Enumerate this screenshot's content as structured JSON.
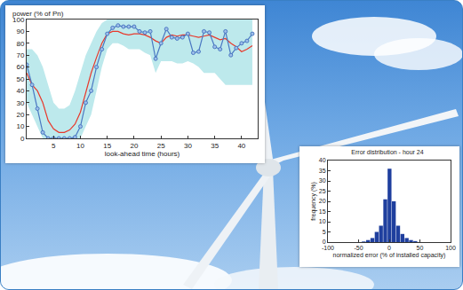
{
  "chart_data": [
    {
      "type": "line",
      "ylabel": "power (% of Pn)",
      "xlabel": "look-ahead time (hours)",
      "x": [
        0,
        1,
        2,
        3,
        4,
        5,
        6,
        7,
        8,
        9,
        10,
        11,
        12,
        13,
        14,
        15,
        16,
        17,
        18,
        19,
        20,
        21,
        22,
        23,
        24,
        25,
        26,
        27,
        28,
        29,
        30,
        31,
        32,
        33,
        34,
        35,
        36,
        37,
        38,
        39,
        40,
        41,
        42
      ],
      "series": [
        {
          "color": "#e8392c",
          "line_style": "solid",
          "marker": "none",
          "values": [
            55,
            45,
            40,
            30,
            15,
            8,
            5,
            5,
            7,
            12,
            22,
            38,
            55,
            68,
            80,
            88,
            90,
            90,
            88,
            87,
            88,
            88,
            87,
            85,
            82,
            80,
            85,
            87,
            86,
            87,
            87,
            86,
            85,
            86,
            87,
            85,
            83,
            84,
            80,
            77,
            73,
            75,
            78
          ]
        },
        {
          "color": "#4a78c2",
          "line_style": "solid",
          "marker": "circle",
          "values": [
            62,
            45,
            25,
            5,
            0,
            0,
            0,
            0,
            0,
            1,
            10,
            30,
            40,
            60,
            75,
            88,
            93,
            95,
            94,
            94,
            94,
            90,
            89,
            90,
            67,
            80,
            92,
            85,
            84,
            85,
            88,
            72,
            73,
            90,
            89,
            77,
            75,
            90,
            70,
            76,
            80,
            82,
            88
          ]
        }
      ],
      "band": {
        "color": "#bde9ec",
        "lower": [
          30,
          20,
          10,
          0,
          0,
          0,
          0,
          0,
          0,
          0,
          0,
          10,
          20,
          40,
          60,
          75,
          80,
          80,
          78,
          75,
          75,
          75,
          72,
          70,
          55,
          65,
          65,
          65,
          63,
          63,
          65,
          63,
          60,
          55,
          55,
          55,
          50,
          45,
          45,
          45,
          45,
          45,
          45
        ],
        "upper": [
          75,
          75,
          70,
          60,
          45,
          30,
          25,
          25,
          28,
          40,
          55,
          70,
          80,
          90,
          97,
          100,
          100,
          100,
          100,
          100,
          100,
          100,
          100,
          100,
          100,
          100,
          100,
          100,
          100,
          100,
          100,
          100,
          100,
          100,
          100,
          100,
          100,
          100,
          100,
          100,
          100,
          100,
          100
        ]
      },
      "xlim": [
        0,
        43
      ],
      "xticks": [
        5,
        10,
        15,
        20,
        25,
        30,
        35,
        40
      ],
      "ylim": [
        0,
        100
      ],
      "yticks": [
        0,
        10,
        20,
        30,
        40,
        50,
        60,
        70,
        80,
        90,
        100
      ],
      "grid": false
    },
    {
      "type": "histogram",
      "title": "Error distribution - hour 24",
      "xlabel": "normalized error (% of installed capacity)",
      "ylabel": "frequency (%)",
      "bins": [
        -45,
        -38,
        -31,
        -24,
        -17,
        -10,
        -3,
        4,
        11,
        18,
        25,
        32,
        39,
        46
      ],
      "values": [
        0.3,
        1,
        2,
        5,
        8,
        21,
        36,
        20,
        8,
        4,
        2,
        1,
        0.5
      ],
      "color": "#1f3f9e",
      "xlim": [
        -100,
        100
      ],
      "xticks": [
        -100,
        -50,
        0,
        50,
        100
      ],
      "ylim": [
        0,
        40
      ],
      "yticks": [
        0,
        5,
        10,
        15,
        20,
        25,
        30,
        35,
        40
      ],
      "grid": false
    }
  ]
}
